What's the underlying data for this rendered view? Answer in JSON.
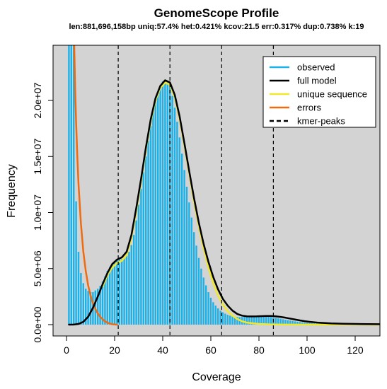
{
  "chart_data": {
    "type": "line",
    "title": "GenomeScope Profile",
    "subtitle": "len:881,696,158bp uniq:57.4%  het:0.421% kcov:21.5 err:0.317%  dup:0.738%  k:19",
    "xlabel": "Coverage",
    "ylabel": "Frequency",
    "xlim": [
      0,
      130
    ],
    "ylim": [
      0,
      25000000
    ],
    "x_ticks": [
      0,
      20,
      40,
      60,
      80,
      100,
      120
    ],
    "x_tick_labels": [
      "0",
      "20",
      "40",
      "60",
      "80",
      "100",
      "120"
    ],
    "y_ticks": [
      0,
      5000000,
      10000000,
      15000000,
      20000000
    ],
    "y_tick_labels": [
      "0.0e+00",
      "5.0e+06",
      "1.0e+07",
      "1.5e+07",
      "2.0e+07"
    ],
    "legend_position": "top-right",
    "legend": [
      {
        "label": "observed",
        "style": "solid",
        "color": "#1ab2e8"
      },
      {
        "label": "full model",
        "style": "solid",
        "color": "#000000"
      },
      {
        "label": "unique sequence",
        "style": "solid",
        "color": "#f0e82a"
      },
      {
        "label": "errors",
        "style": "solid",
        "color": "#f06a10"
      },
      {
        "label": "kmer-peaks",
        "style": "dashed",
        "color": "#000000"
      }
    ],
    "kmer_peaks": [
      21.5,
      43,
      64.5,
      86
    ],
    "series": [
      {
        "name": "observed",
        "kind": "histogram",
        "color": "#1ab2e8",
        "x": [
          1,
          2,
          3,
          4,
          5,
          6,
          7,
          8,
          9,
          10,
          11,
          12,
          13,
          14,
          15,
          16,
          17,
          18,
          19,
          20,
          21,
          22,
          23,
          24,
          25,
          26,
          27,
          28,
          29,
          30,
          31,
          32,
          33,
          34,
          35,
          36,
          37,
          38,
          39,
          40,
          41,
          42,
          43,
          44,
          45,
          46,
          47,
          48,
          49,
          50,
          51,
          52,
          53,
          54,
          55,
          56,
          57,
          58,
          59,
          60,
          61,
          62,
          63,
          64,
          65,
          66,
          67,
          68,
          69,
          70,
          71,
          72,
          73,
          74,
          75,
          76,
          77,
          78,
          79,
          80,
          81,
          82,
          83,
          84,
          85,
          86,
          87,
          88,
          89,
          90,
          91,
          92,
          93,
          94,
          95,
          96,
          97,
          98,
          99,
          100,
          101,
          102,
          103,
          104,
          105,
          106,
          107,
          108,
          109,
          110,
          111,
          112,
          113,
          114,
          115,
          116,
          117,
          118,
          119,
          120,
          121,
          122,
          123,
          124,
          125,
          126,
          127,
          128,
          129,
          130
        ],
        "y": [
          25000000,
          25000000,
          25000000,
          11000000,
          6500000,
          4600000,
          3700000,
          3200000,
          3000000,
          2900000,
          2900000,
          3050000,
          3200000,
          3450000,
          3850000,
          4300000,
          4800000,
          5150000,
          5450000,
          5650000,
          5750000,
          5800000,
          5850000,
          5950000,
          6150000,
          6500000,
          7100000,
          8000000,
          9300000,
          10700000,
          12100000,
          13600000,
          15000000,
          16400000,
          17700000,
          18900000,
          19900000,
          20700000,
          21300000,
          21700000,
          21800000,
          21650000,
          21200000,
          20400000,
          19350000,
          18100000,
          16700000,
          15250000,
          13800000,
          12300000,
          10900000,
          9550000,
          8250000,
          7050000,
          5950000,
          5000000,
          4200000,
          3500000,
          2900000,
          2400000,
          2000000,
          1700000,
          1450000,
          1250000,
          1100000,
          980000,
          880000,
          800000,
          740000,
          700000,
          680000,
          670000,
          680000,
          700000,
          720000,
          740000,
          760000,
          770000,
          780000,
          780000,
          770000,
          760000,
          740000,
          710000,
          680000,
          640000,
          600000,
          560000,
          520000,
          480000,
          440000,
          400000,
          360000,
          320000,
          290000,
          260000,
          230000,
          200000,
          180000,
          160000,
          150000,
          140000,
          130000,
          125000,
          120000,
          115000,
          112000,
          110000,
          108000,
          106000,
          104000,
          103000,
          102000,
          101000,
          100000,
          100000,
          100000,
          100000,
          100000,
          100000,
          100000,
          100000,
          100000,
          100000,
          100000,
          100000,
          100000,
          100000,
          100000,
          100000
        ]
      },
      {
        "name": "full model",
        "kind": "line",
        "color": "#000000",
        "x": [
          1,
          3,
          5,
          7,
          9,
          11,
          13,
          15,
          17,
          19,
          21,
          23,
          25,
          27,
          29,
          31,
          33,
          35,
          37,
          39,
          41,
          43,
          45,
          47,
          49,
          51,
          53,
          55,
          57,
          59,
          61,
          63,
          65,
          67,
          69,
          71,
          73,
          75,
          77,
          79,
          81,
          83,
          85,
          87,
          89,
          91,
          93,
          95,
          97,
          99,
          101,
          105,
          110,
          115,
          120,
          125,
          130
        ],
        "y": [
          0,
          10000,
          60000,
          250000,
          700000,
          1500000,
          2500000,
          3600000,
          4600000,
          5400000,
          5800000,
          6000000,
          6500000,
          8000000,
          10400000,
          13000000,
          15800000,
          18300000,
          20200000,
          21300000,
          21800000,
          21600000,
          20500000,
          18600000,
          16200000,
          13700000,
          11300000,
          9100000,
          7200000,
          5600000,
          4250000,
          3150000,
          2300000,
          1700000,
          1250000,
          950000,
          800000,
          740000,
          730000,
          740000,
          760000,
          770000,
          770000,
          740000,
          690000,
          620000,
          540000,
          460000,
          380000,
          310000,
          250000,
          170000,
          110000,
          80000,
          60000,
          50000,
          40000
        ]
      },
      {
        "name": "unique sequence",
        "kind": "line",
        "color": "#f0e82a",
        "x": [
          15,
          17,
          19,
          21,
          23,
          25,
          27,
          29,
          31,
          33,
          35,
          37,
          39,
          41,
          43,
          45,
          47,
          49,
          51,
          53,
          55,
          57,
          59,
          61,
          63,
          65,
          67,
          69,
          71,
          73,
          75,
          80,
          85,
          90,
          100,
          110,
          120,
          130
        ],
        "y": [
          3400000,
          4400000,
          5100000,
          5500000,
          5700000,
          6200000,
          7700000,
          10100000,
          12800000,
          15600000,
          18100000,
          20000000,
          21100000,
          21600000,
          21400000,
          20300000,
          18400000,
          16000000,
          13500000,
          11000000,
          8800000,
          6800000,
          5100000,
          3700000,
          2600000,
          1800000,
          1200000,
          800000,
          500000,
          300000,
          180000,
          60000,
          20000,
          5000,
          0,
          0,
          0,
          0
        ]
      },
      {
        "name": "errors",
        "kind": "line",
        "color": "#f06a10",
        "x": [
          3.2,
          3.6,
          4,
          4.5,
          5,
          6,
          7,
          8,
          9,
          10,
          11,
          12,
          13,
          14,
          15,
          16,
          17,
          18,
          19,
          20,
          21
        ],
        "y": [
          25000000,
          21000000,
          18000000,
          15000000,
          12500000,
          9000000,
          6500000,
          4800000,
          3500000,
          2600000,
          1900000,
          1400000,
          1000000,
          700000,
          480000,
          300000,
          180000,
          90000,
          40000,
          15000,
          0
        ]
      }
    ]
  }
}
